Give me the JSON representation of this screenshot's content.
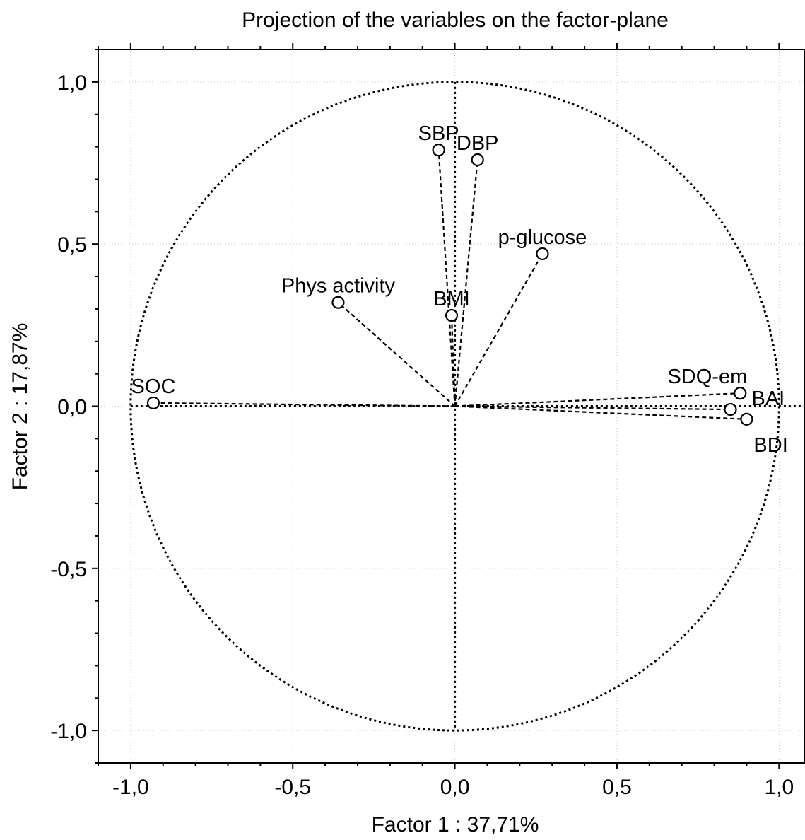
{
  "chart_data": {
    "type": "scatter",
    "title": "Projection of the variables on the factor-plane",
    "xlabel": "Factor 1 : 37,71%",
    "ylabel": "Factor 2 : 17,87%",
    "xlim": [
      -1.1,
      1.08
    ],
    "ylim": [
      -1.1,
      1.1
    ],
    "major_ticks": [
      -1.0,
      -0.5,
      0.0,
      0.5,
      1.0
    ],
    "x_tick_labels": [
      "-1,0",
      "-0,5",
      "0,0",
      "0,5",
      "1,0"
    ],
    "y_tick_labels": [
      "-1,0",
      "-0,5",
      "0,0",
      "0,5",
      "1,0"
    ],
    "grid": true,
    "unit_circle": true,
    "points": [
      {
        "name": "SBP",
        "x": -0.05,
        "y": 0.79
      },
      {
        "name": "DBP",
        "x": 0.07,
        "y": 0.76
      },
      {
        "name": "p-glucose",
        "x": 0.27,
        "y": 0.47
      },
      {
        "name": "Phys activity",
        "x": -0.36,
        "y": 0.32
      },
      {
        "name": "BMI",
        "x": -0.01,
        "y": 0.28
      },
      {
        "name": "SOC",
        "x": -0.93,
        "y": 0.01
      },
      {
        "name": "SDQ-em",
        "x": 0.88,
        "y": 0.04
      },
      {
        "name": "BAI",
        "x": 0.85,
        "y": -0.01
      },
      {
        "name": "BDI",
        "x": 0.9,
        "y": -0.04
      }
    ]
  }
}
